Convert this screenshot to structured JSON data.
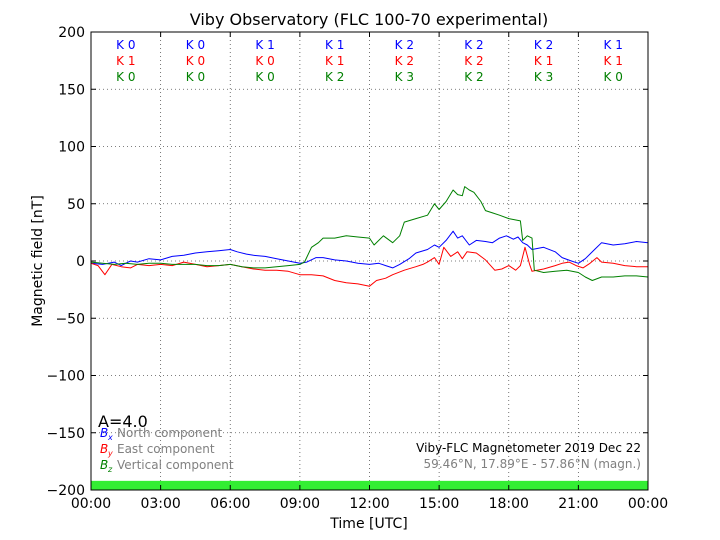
{
  "chart_data": {
    "type": "line",
    "title": "Viby Observatory (FLC 100-70 experimental)",
    "xlabel": "Time [UTC]",
    "ylabel": "Magnetic field [nT]",
    "xlim": [
      0,
      24
    ],
    "ylim": [
      -200,
      200
    ],
    "x_ticks": [
      0,
      3,
      6,
      9,
      12,
      15,
      18,
      21,
      24
    ],
    "x_tick_labels": [
      "00:00",
      "03:00",
      "06:00",
      "09:00",
      "12:00",
      "15:00",
      "18:00",
      "21:00",
      "00:00"
    ],
    "y_ticks": [
      -200,
      -150,
      -100,
      -50,
      0,
      50,
      100,
      150,
      200
    ],
    "y_tick_labels": [
      "−200",
      "−150",
      "−100",
      "−50",
      "0",
      "50",
      "100",
      "150",
      "200"
    ],
    "grid": true,
    "colors": {
      "north": "#0000ff",
      "east": "#ff0000",
      "vertical": "#008000",
      "quiet_band": "#33ee33",
      "note": "#808080"
    },
    "k_indices": {
      "rows": [
        {
          "color": "#0000ff",
          "labels": [
            "K 0",
            "K 0",
            "K 1",
            "K 1",
            "K 2",
            "K 2",
            "K 2",
            "K 1"
          ]
        },
        {
          "color": "#ff0000",
          "labels": [
            "K 1",
            "K 0",
            "K 0",
            "K 1",
            "K 2",
            "K 2",
            "K 1",
            "K 1"
          ]
        },
        {
          "color": "#008000",
          "labels": [
            "K 0",
            "K 0",
            "K 0",
            "K 2",
            "K 3",
            "K 2",
            "K 3",
            "K 0"
          ]
        }
      ]
    },
    "a_index_label": "A=4.0",
    "legend": {
      "position": "bottom-left",
      "entries": [
        {
          "symbol": "B",
          "subscript": "x",
          "label": "North component",
          "color": "#0000ff"
        },
        {
          "symbol": "B",
          "subscript": "y",
          "label": "East component",
          "color": "#ff0000"
        },
        {
          "symbol": "B",
          "subscript": "z",
          "label": "Vertical component",
          "color": "#008000"
        }
      ]
    },
    "info_line1": "Viby-FLC Magnetometer 2019 Dec 22",
    "info_line2": "59.46°N, 17.89°E - 57.86°N (magn.)",
    "quiet_band": [
      -200,
      -192
    ],
    "series": [
      {
        "key": "north",
        "color": "#0000ff",
        "points": [
          [
            0,
            -2
          ],
          [
            0.5,
            -3
          ],
          [
            1,
            -1
          ],
          [
            1.3,
            -4
          ],
          [
            1.7,
            0
          ],
          [
            2,
            -1
          ],
          [
            2.5,
            2
          ],
          [
            3,
            1
          ],
          [
            3.5,
            4
          ],
          [
            4,
            5
          ],
          [
            4.5,
            7
          ],
          [
            5,
            8
          ],
          [
            5.5,
            9
          ],
          [
            6,
            10
          ],
          [
            6.3,
            8
          ],
          [
            6.7,
            6
          ],
          [
            7,
            5
          ],
          [
            7.5,
            4
          ],
          [
            8,
            2
          ],
          [
            8.5,
            0
          ],
          [
            9,
            -2
          ],
          [
            9.3,
            -1
          ],
          [
            9.7,
            3
          ],
          [
            10,
            3
          ],
          [
            10.5,
            1
          ],
          [
            11,
            0
          ],
          [
            11.5,
            -2
          ],
          [
            12,
            -3
          ],
          [
            12.4,
            -2
          ],
          [
            12.7,
            -4
          ],
          [
            13,
            -6
          ],
          [
            13.3,
            -3
          ],
          [
            13.7,
            2
          ],
          [
            14,
            7
          ],
          [
            14.5,
            10
          ],
          [
            14.8,
            14
          ],
          [
            15,
            12
          ],
          [
            15.3,
            18
          ],
          [
            15.6,
            26
          ],
          [
            15.8,
            20
          ],
          [
            16,
            22
          ],
          [
            16.3,
            14
          ],
          [
            16.6,
            18
          ],
          [
            17,
            17
          ],
          [
            17.3,
            16
          ],
          [
            17.6,
            20
          ],
          [
            17.9,
            22
          ],
          [
            18.2,
            19
          ],
          [
            18.4,
            21
          ],
          [
            18.6,
            16
          ],
          [
            18.8,
            14
          ],
          [
            19,
            10
          ],
          [
            19.5,
            12
          ],
          [
            20,
            8
          ],
          [
            20.3,
            3
          ],
          [
            20.7,
            0
          ],
          [
            21,
            -2
          ],
          [
            21.3,
            2
          ],
          [
            21.7,
            10
          ],
          [
            22,
            16
          ],
          [
            22.5,
            14
          ],
          [
            23,
            15
          ],
          [
            23.5,
            17
          ],
          [
            24,
            16
          ]
        ]
      },
      {
        "key": "east",
        "color": "#ff0000",
        "points": [
          [
            0,
            -2
          ],
          [
            0.3,
            -4
          ],
          [
            0.6,
            -12
          ],
          [
            0.9,
            -3
          ],
          [
            1.3,
            -5
          ],
          [
            1.7,
            -6
          ],
          [
            2,
            -3
          ],
          [
            2.5,
            -4
          ],
          [
            3,
            -3
          ],
          [
            3.5,
            -4
          ],
          [
            4,
            -1
          ],
          [
            4.5,
            -3
          ],
          [
            5,
            -5
          ],
          [
            5.5,
            -4
          ],
          [
            6,
            -3
          ],
          [
            6.5,
            -5
          ],
          [
            7,
            -7
          ],
          [
            7.5,
            -8
          ],
          [
            8,
            -8
          ],
          [
            8.5,
            -9
          ],
          [
            9,
            -12
          ],
          [
            9.5,
            -12
          ],
          [
            10,
            -13
          ],
          [
            10.5,
            -17
          ],
          [
            11,
            -19
          ],
          [
            11.5,
            -20
          ],
          [
            12,
            -22
          ],
          [
            12.3,
            -17
          ],
          [
            12.7,
            -15
          ],
          [
            13,
            -12
          ],
          [
            13.5,
            -8
          ],
          [
            14,
            -5
          ],
          [
            14.3,
            -3
          ],
          [
            14.5,
            -1
          ],
          [
            14.8,
            3
          ],
          [
            15,
            -3
          ],
          [
            15.2,
            12
          ],
          [
            15.5,
            4
          ],
          [
            15.8,
            8
          ],
          [
            16,
            2
          ],
          [
            16.2,
            8
          ],
          [
            16.6,
            7
          ],
          [
            17,
            1
          ],
          [
            17.4,
            -8
          ],
          [
            17.7,
            -7
          ],
          [
            18,
            -4
          ],
          [
            18.3,
            -8
          ],
          [
            18.5,
            -4
          ],
          [
            18.7,
            12
          ],
          [
            18.9,
            -3
          ],
          [
            19,
            -9
          ],
          [
            19.5,
            -7
          ],
          [
            20,
            -4
          ],
          [
            20.3,
            -2
          ],
          [
            20.6,
            -1
          ],
          [
            20.9,
            -4
          ],
          [
            21.2,
            -6
          ],
          [
            21.5,
            -2
          ],
          [
            21.8,
            3
          ],
          [
            22,
            -1
          ],
          [
            22.5,
            -2
          ],
          [
            23,
            -4
          ],
          [
            23.5,
            -5
          ],
          [
            24,
            -5
          ]
        ]
      },
      {
        "key": "vertical",
        "color": "#008000",
        "points": [
          [
            0,
            -1
          ],
          [
            0.5,
            -2
          ],
          [
            1,
            -3
          ],
          [
            1.5,
            -2
          ],
          [
            2,
            -3
          ],
          [
            2.5,
            -2
          ],
          [
            3,
            -2
          ],
          [
            3.5,
            -3
          ],
          [
            4,
            -3
          ],
          [
            4.5,
            -3
          ],
          [
            5,
            -4
          ],
          [
            5.5,
            -4
          ],
          [
            6,
            -3
          ],
          [
            6.5,
            -5
          ],
          [
            7,
            -6
          ],
          [
            7.5,
            -6
          ],
          [
            8,
            -5
          ],
          [
            8.5,
            -4
          ],
          [
            9,
            -3
          ],
          [
            9.2,
            -1
          ],
          [
            9.5,
            12
          ],
          [
            9.8,
            16
          ],
          [
            10,
            20
          ],
          [
            10.5,
            20
          ],
          [
            11,
            22
          ],
          [
            11.5,
            21
          ],
          [
            12,
            20
          ],
          [
            12.2,
            14
          ],
          [
            12.6,
            22
          ],
          [
            13,
            16
          ],
          [
            13.3,
            22
          ],
          [
            13.5,
            34
          ],
          [
            14,
            37
          ],
          [
            14.5,
            40
          ],
          [
            14.8,
            50
          ],
          [
            15,
            45
          ],
          [
            15.3,
            52
          ],
          [
            15.6,
            62
          ],
          [
            15.8,
            58
          ],
          [
            16,
            57
          ],
          [
            16.1,
            65
          ],
          [
            16.3,
            62
          ],
          [
            16.5,
            60
          ],
          [
            16.8,
            52
          ],
          [
            17,
            44
          ],
          [
            17.3,
            42
          ],
          [
            17.6,
            40
          ],
          [
            18,
            37
          ],
          [
            18.5,
            35
          ],
          [
            18.6,
            18
          ],
          [
            18.8,
            22
          ],
          [
            19,
            20
          ],
          [
            19.1,
            -8
          ],
          [
            19.5,
            -10
          ],
          [
            20,
            -9
          ],
          [
            20.5,
            -8
          ],
          [
            21,
            -10
          ],
          [
            21.3,
            -14
          ],
          [
            21.6,
            -17
          ],
          [
            22,
            -14
          ],
          [
            22.5,
            -14
          ],
          [
            23,
            -13
          ],
          [
            23.5,
            -13
          ],
          [
            24,
            -14
          ]
        ]
      }
    ]
  }
}
